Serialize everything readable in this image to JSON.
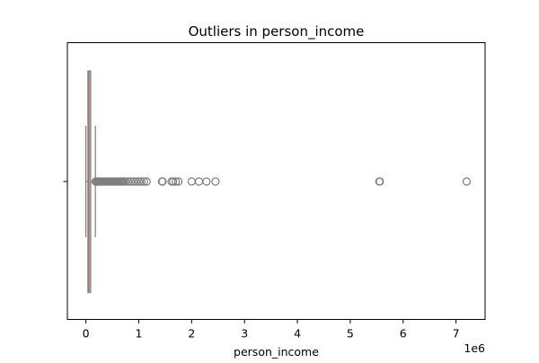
{
  "chart_data": {
    "type": "box",
    "title": "Outliers in person_income",
    "xlabel": "person_income",
    "ylabel": "",
    "x_offset_label": "1e6",
    "x_scale_factor": 1000000,
    "xlim": [
      -350000,
      7550000
    ],
    "xticks": [
      {
        "value": 0,
        "label": "0"
      },
      {
        "value": 1000000,
        "label": "1"
      },
      {
        "value": 2000000,
        "label": "2"
      },
      {
        "value": 3000000,
        "label": "3"
      },
      {
        "value": 4000000,
        "label": "4"
      },
      {
        "value": 5000000,
        "label": "5"
      },
      {
        "value": 6000000,
        "label": "6"
      },
      {
        "value": 7000000,
        "label": "7"
      }
    ],
    "orientation": "horizontal",
    "grid": false,
    "box": {
      "whisker_low": 0,
      "q1": 39000,
      "median": 55000,
      "q3": 80000,
      "whisker_high": 180000,
      "box_color": "#e8a798",
      "line_color": "#7f7f7f"
    },
    "outliers": [
      185000,
      200000,
      220000,
      240000,
      260000,
      280000,
      300000,
      320000,
      340000,
      360000,
      380000,
      400000,
      420000,
      440000,
      460000,
      480000,
      500000,
      520000,
      540000,
      560000,
      580000,
      600000,
      620000,
      640000,
      660000,
      680000,
      700000,
      720000,
      750000,
      800000,
      850000,
      900000,
      950000,
      1000000,
      1050000,
      1100000,
      1150000,
      1440000,
      1450000,
      1620000,
      1650000,
      1700000,
      1750000,
      2000000,
      2140000,
      2280000,
      2450000,
      5550000,
      5560000,
      7200000
    ],
    "outlier_color": "#7f7f7f"
  }
}
